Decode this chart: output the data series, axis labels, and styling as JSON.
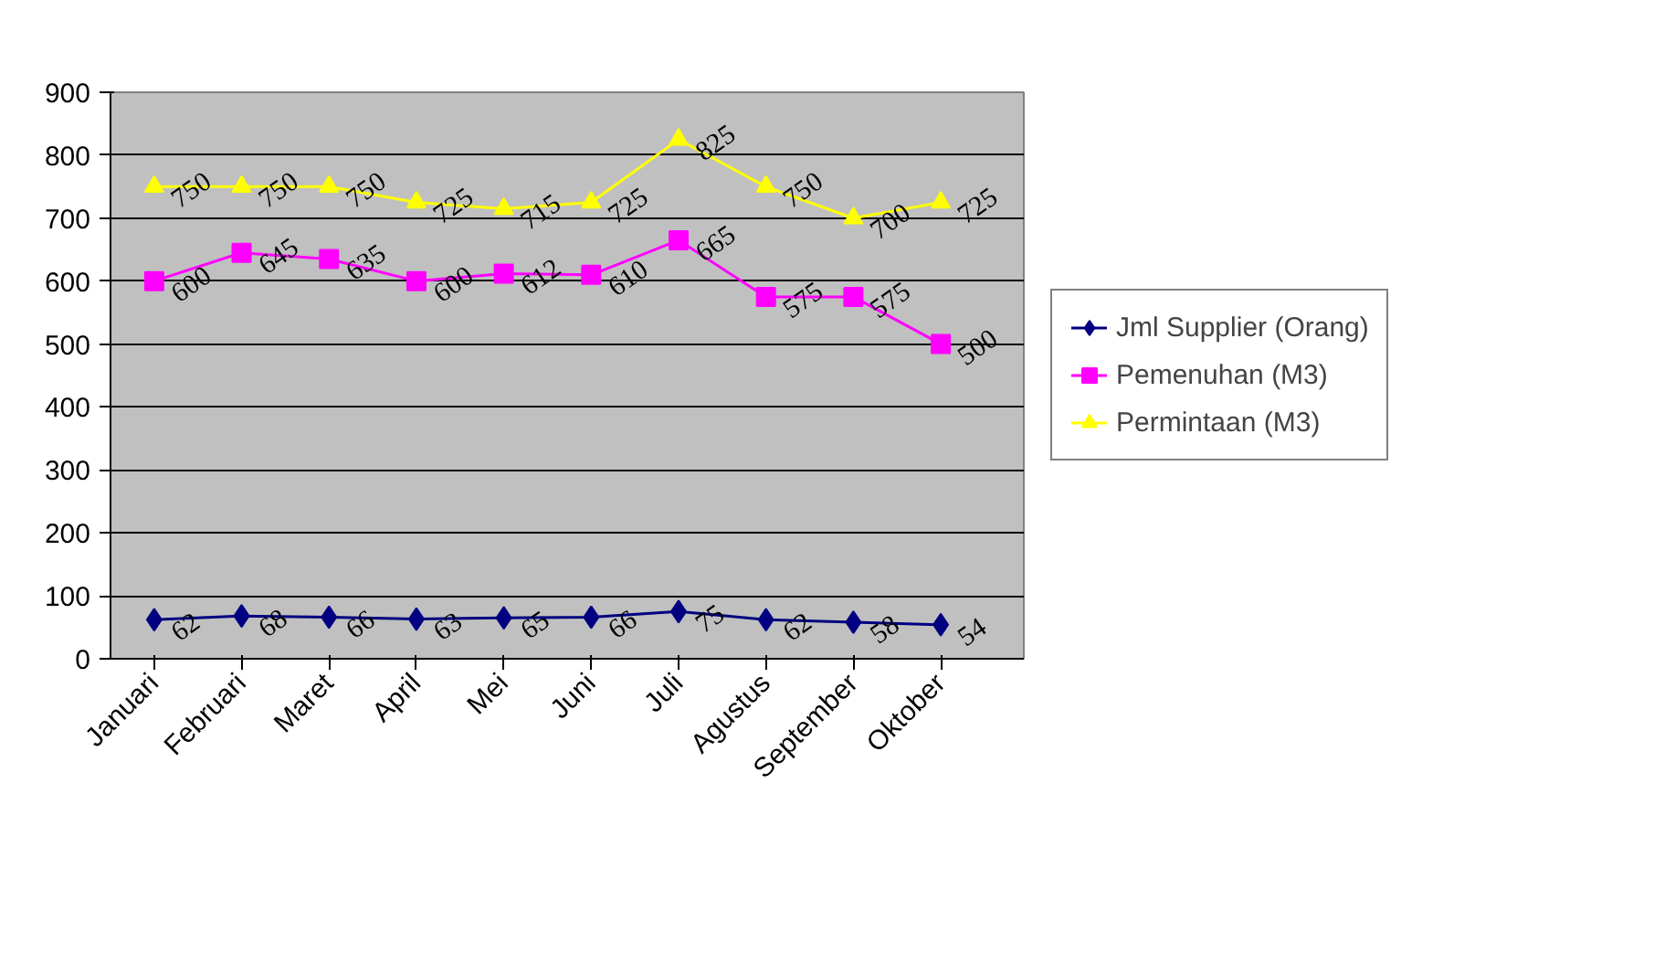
{
  "chart_data": {
    "type": "line",
    "categories": [
      "Januari",
      "Februari",
      "Maret",
      "April",
      "Mei",
      "Juni",
      "Juli",
      "Agustus",
      "September",
      "Oktober"
    ],
    "series": [
      {
        "name": "Jml Supplier (Orang)",
        "color": "#000080",
        "marker": "diamond",
        "values": [
          62,
          68,
          66,
          63,
          65,
          66,
          75,
          62,
          58,
          54
        ]
      },
      {
        "name": "Pemenuhan (M3)",
        "color": "#ff00ff",
        "marker": "square",
        "values": [
          600,
          645,
          635,
          600,
          612,
          610,
          665,
          575,
          575,
          500
        ]
      },
      {
        "name": "Permintaan (M3)",
        "color": "#ffff00",
        "marker": "triangle",
        "values": [
          750,
          750,
          750,
          725,
          715,
          725,
          825,
          750,
          700,
          725
        ]
      }
    ],
    "ylim": [
      0,
      900
    ],
    "yticks": [
      0,
      100,
      200,
      300,
      400,
      500,
      600,
      700,
      800,
      900
    ],
    "grid": "y",
    "legend": "right",
    "data_labels": true,
    "line_style": "solid"
  }
}
